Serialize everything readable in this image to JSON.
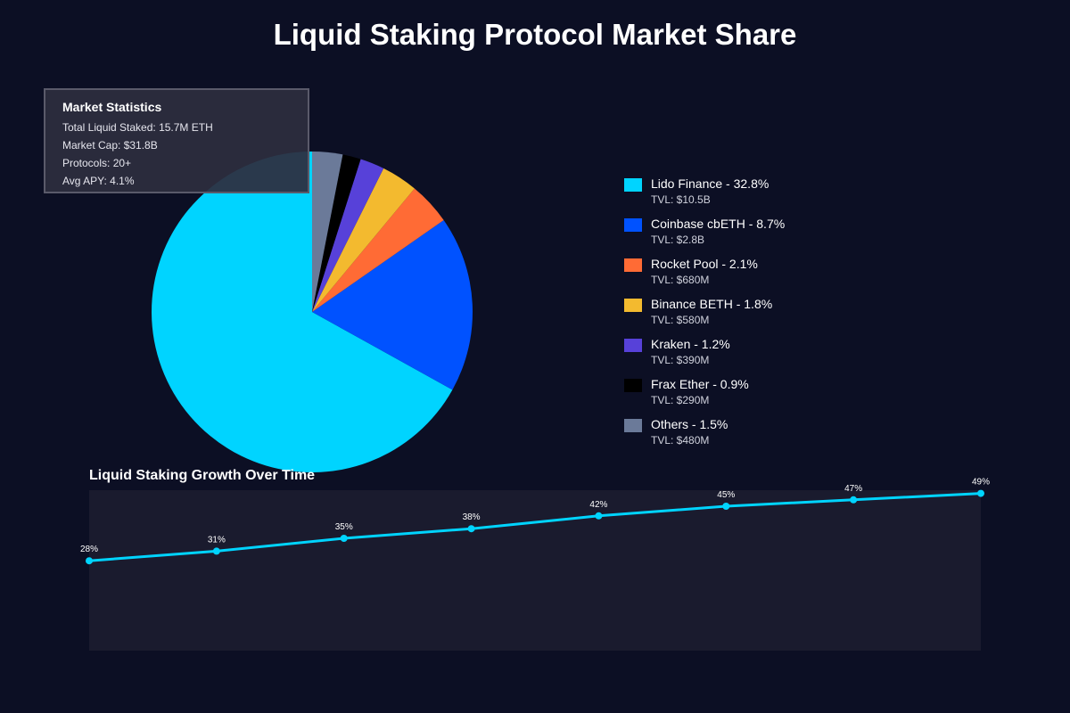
{
  "title": "Liquid Staking Protocol Market Share",
  "stats": {
    "title": "Market Statistics",
    "lines": [
      "Total Liquid Staked: 15.7M ETH",
      "Market Cap: $31.8B",
      "Protocols: 20+",
      "Avg APY: 4.1%"
    ]
  },
  "chart_data": [
    {
      "type": "pie",
      "title": "Liquid Staking Protocol Market Share",
      "slices": [
        {
          "name": "Lido Finance",
          "value": 32.8,
          "tvl": "TVL: $10.5B",
          "label": "Lido Finance - 32.8%",
          "color": "#00d4ff"
        },
        {
          "name": "Coinbase cbETH",
          "value": 8.7,
          "tvl": "TVL: $2.8B",
          "label": "Coinbase cbETH - 8.7%",
          "color": "#0052ff"
        },
        {
          "name": "Rocket Pool",
          "value": 2.1,
          "tvl": "TVL: $680M",
          "label": "Rocket Pool - 2.1%",
          "color": "#ff6b35"
        },
        {
          "name": "Binance BETH",
          "value": 1.8,
          "tvl": "TVL: $580M",
          "label": "Binance BETH - 1.8%",
          "color": "#f3ba2f"
        },
        {
          "name": "Kraken",
          "value": 1.2,
          "tvl": "TVL: $390M",
          "label": "Kraken - 1.2%",
          "color": "#5741d9"
        },
        {
          "name": "Frax Ether",
          "value": 0.9,
          "tvl": "TVL: $290M",
          "label": "Frax Ether - 0.9%",
          "color": "#000000"
        },
        {
          "name": "Others",
          "value": 1.5,
          "tvl": "TVL: $480M",
          "label": "Others - 1.5%",
          "color": "#6b7a99"
        }
      ],
      "legend_position": "right"
    },
    {
      "type": "line",
      "title": "Liquid Staking Growth Over Time",
      "values": [
        28,
        31,
        35,
        38,
        42,
        45,
        47,
        49
      ],
      "point_labels": [
        "28%",
        "31%",
        "35%",
        "38%",
        "42%",
        "45%",
        "47%",
        "49%"
      ],
      "ylim": [
        0,
        50
      ],
      "line_color": "#00d4ff",
      "panel_color": "#1a1b2e"
    }
  ]
}
